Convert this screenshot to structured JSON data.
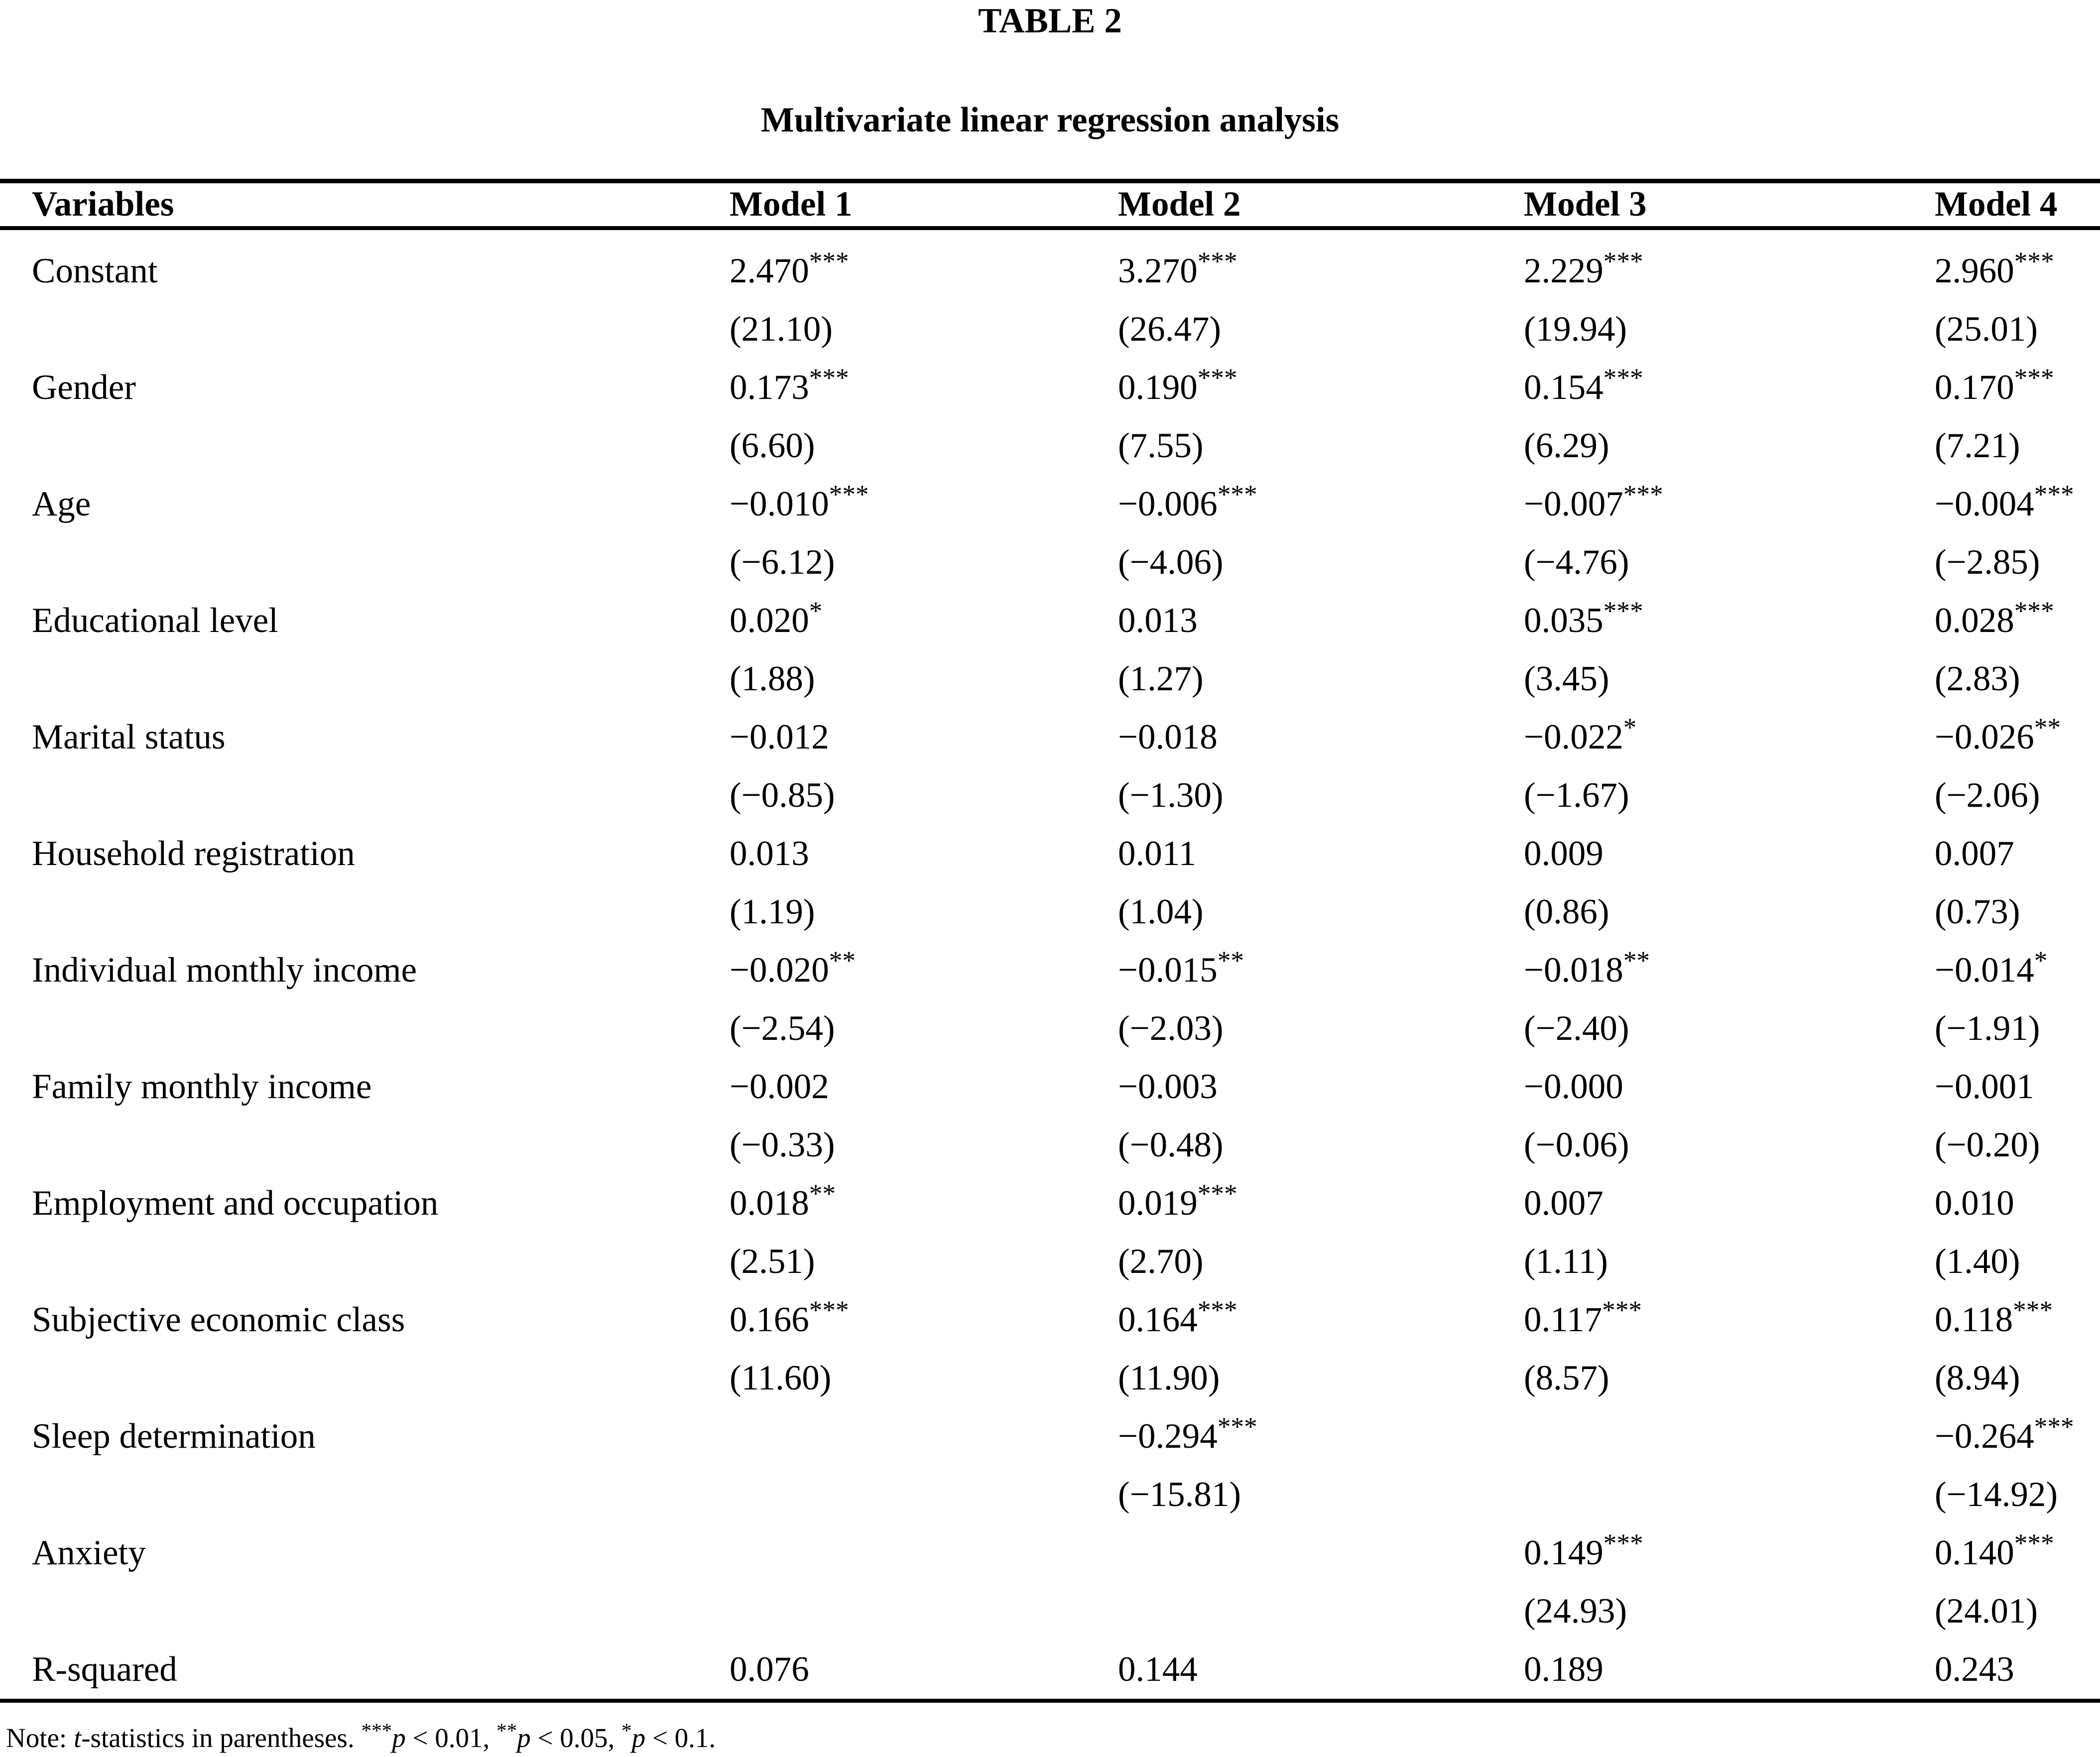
{
  "title": "TABLE 2",
  "subtitle": "Multivariate linear regression analysis",
  "table": {
    "columns": [
      "Variables",
      "Model 1",
      "Model 2",
      "Model 3",
      "Model 4"
    ],
    "rows": [
      {
        "label": "Constant",
        "coef": [
          "2.470***",
          "3.270***",
          "2.229***",
          "2.960***"
        ],
        "tstat": [
          "(21.10)",
          "(26.47)",
          "(19.94)",
          "(25.01)"
        ]
      },
      {
        "label": "Gender",
        "coef": [
          "0.173***",
          "0.190***",
          "0.154***",
          "0.170***"
        ],
        "tstat": [
          "(6.60)",
          "(7.55)",
          "(6.29)",
          "(7.21)"
        ]
      },
      {
        "label": "Age",
        "coef": [
          "−0.010***",
          "−0.006***",
          "−0.007***",
          "−0.004***"
        ],
        "tstat": [
          "(−6.12)",
          "(−4.06)",
          "(−4.76)",
          "(−2.85)"
        ]
      },
      {
        "label": "Educational level",
        "coef": [
          "0.020*",
          "0.013",
          "0.035***",
          "0.028***"
        ],
        "tstat": [
          "(1.88)",
          "(1.27)",
          "(3.45)",
          "(2.83)"
        ]
      },
      {
        "label": "Marital status",
        "coef": [
          "−0.012",
          "−0.018",
          "−0.022*",
          "−0.026**"
        ],
        "tstat": [
          "(−0.85)",
          "(−1.30)",
          "(−1.67)",
          "(−2.06)"
        ]
      },
      {
        "label": "Household registration",
        "coef": [
          "0.013",
          "0.011",
          "0.009",
          "0.007"
        ],
        "tstat": [
          "(1.19)",
          "(1.04)",
          "(0.86)",
          "(0.73)"
        ]
      },
      {
        "label": "Individual monthly income",
        "coef": [
          "−0.020**",
          "−0.015**",
          "−0.018**",
          "−0.014*"
        ],
        "tstat": [
          "(−2.54)",
          "(−2.03)",
          "(−2.40)",
          "(−1.91)"
        ]
      },
      {
        "label": "Family monthly income",
        "coef": [
          "−0.002",
          "−0.003",
          "−0.000",
          "−0.001"
        ],
        "tstat": [
          "(−0.33)",
          "(−0.48)",
          "(−0.06)",
          "(−0.20)"
        ]
      },
      {
        "label": "Employment and occupation",
        "coef": [
          "0.018**",
          "0.019***",
          "0.007",
          "0.010"
        ],
        "tstat": [
          "(2.51)",
          "(2.70)",
          "(1.11)",
          "(1.40)"
        ]
      },
      {
        "label": "Subjective economic class",
        "coef": [
          "0.166***",
          "0.164***",
          "0.117***",
          "0.118***"
        ],
        "tstat": [
          "(11.60)",
          "(11.90)",
          "(8.57)",
          "(8.94)"
        ]
      },
      {
        "label": "Sleep determination",
        "coef": [
          "",
          "−0.294***",
          "",
          "−0.264***"
        ],
        "tstat": [
          "",
          "(−15.81)",
          "",
          "(−14.92)"
        ]
      },
      {
        "label": "Anxiety",
        "coef": [
          "",
          "",
          "0.149***",
          "0.140***"
        ],
        "tstat": [
          "",
          "",
          "(24.93)",
          "(24.01)"
        ]
      },
      {
        "label": "R-squared",
        "coef": [
          "0.076",
          "0.144",
          "0.189",
          "0.243"
        ],
        "tstat": null
      }
    ]
  },
  "note": {
    "segments": [
      {
        "text": "Note: "
      },
      {
        "text": "t",
        "italic": true
      },
      {
        "text": "-statistics in parentheses. "
      },
      {
        "text": "***",
        "sup": true
      },
      {
        "text": "p",
        "italic": true
      },
      {
        "text": " < 0.01, "
      },
      {
        "text": "**",
        "sup": true
      },
      {
        "text": "p",
        "italic": true
      },
      {
        "text": " < 0.05, "
      },
      {
        "text": "*",
        "sup": true
      },
      {
        "text": "p",
        "italic": true
      },
      {
        "text": " < 0.1."
      }
    ]
  }
}
